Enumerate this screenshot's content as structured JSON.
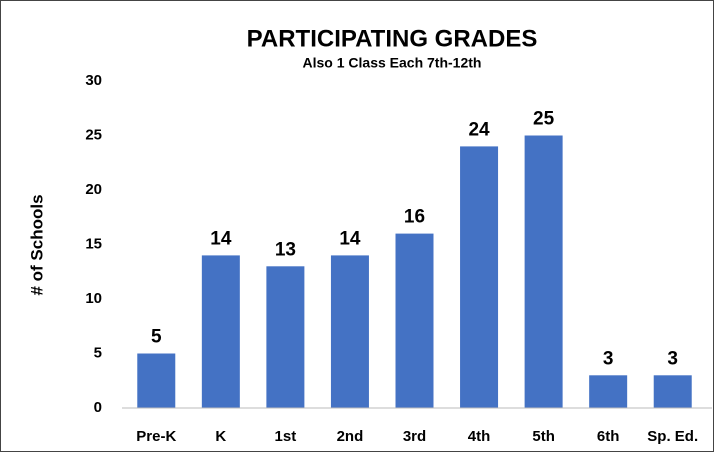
{
  "chart_data": {
    "type": "bar",
    "title": "PARTICIPATING GRADES",
    "subtitle": "Also 1 Class Each 7th-12th",
    "y_label": "# of Schools",
    "categories": [
      "Pre-K",
      "K",
      "1st",
      "2nd",
      "3rd",
      "4th",
      "5th",
      "6th",
      "Sp. Ed."
    ],
    "values": [
      5,
      14,
      13,
      14,
      16,
      24,
      25,
      3,
      3
    ],
    "color": "#4472c4",
    "ylim": [
      0,
      30
    ],
    "yticks": [
      0,
      5,
      10,
      15,
      20,
      25,
      30
    ],
    "grid": false
  }
}
